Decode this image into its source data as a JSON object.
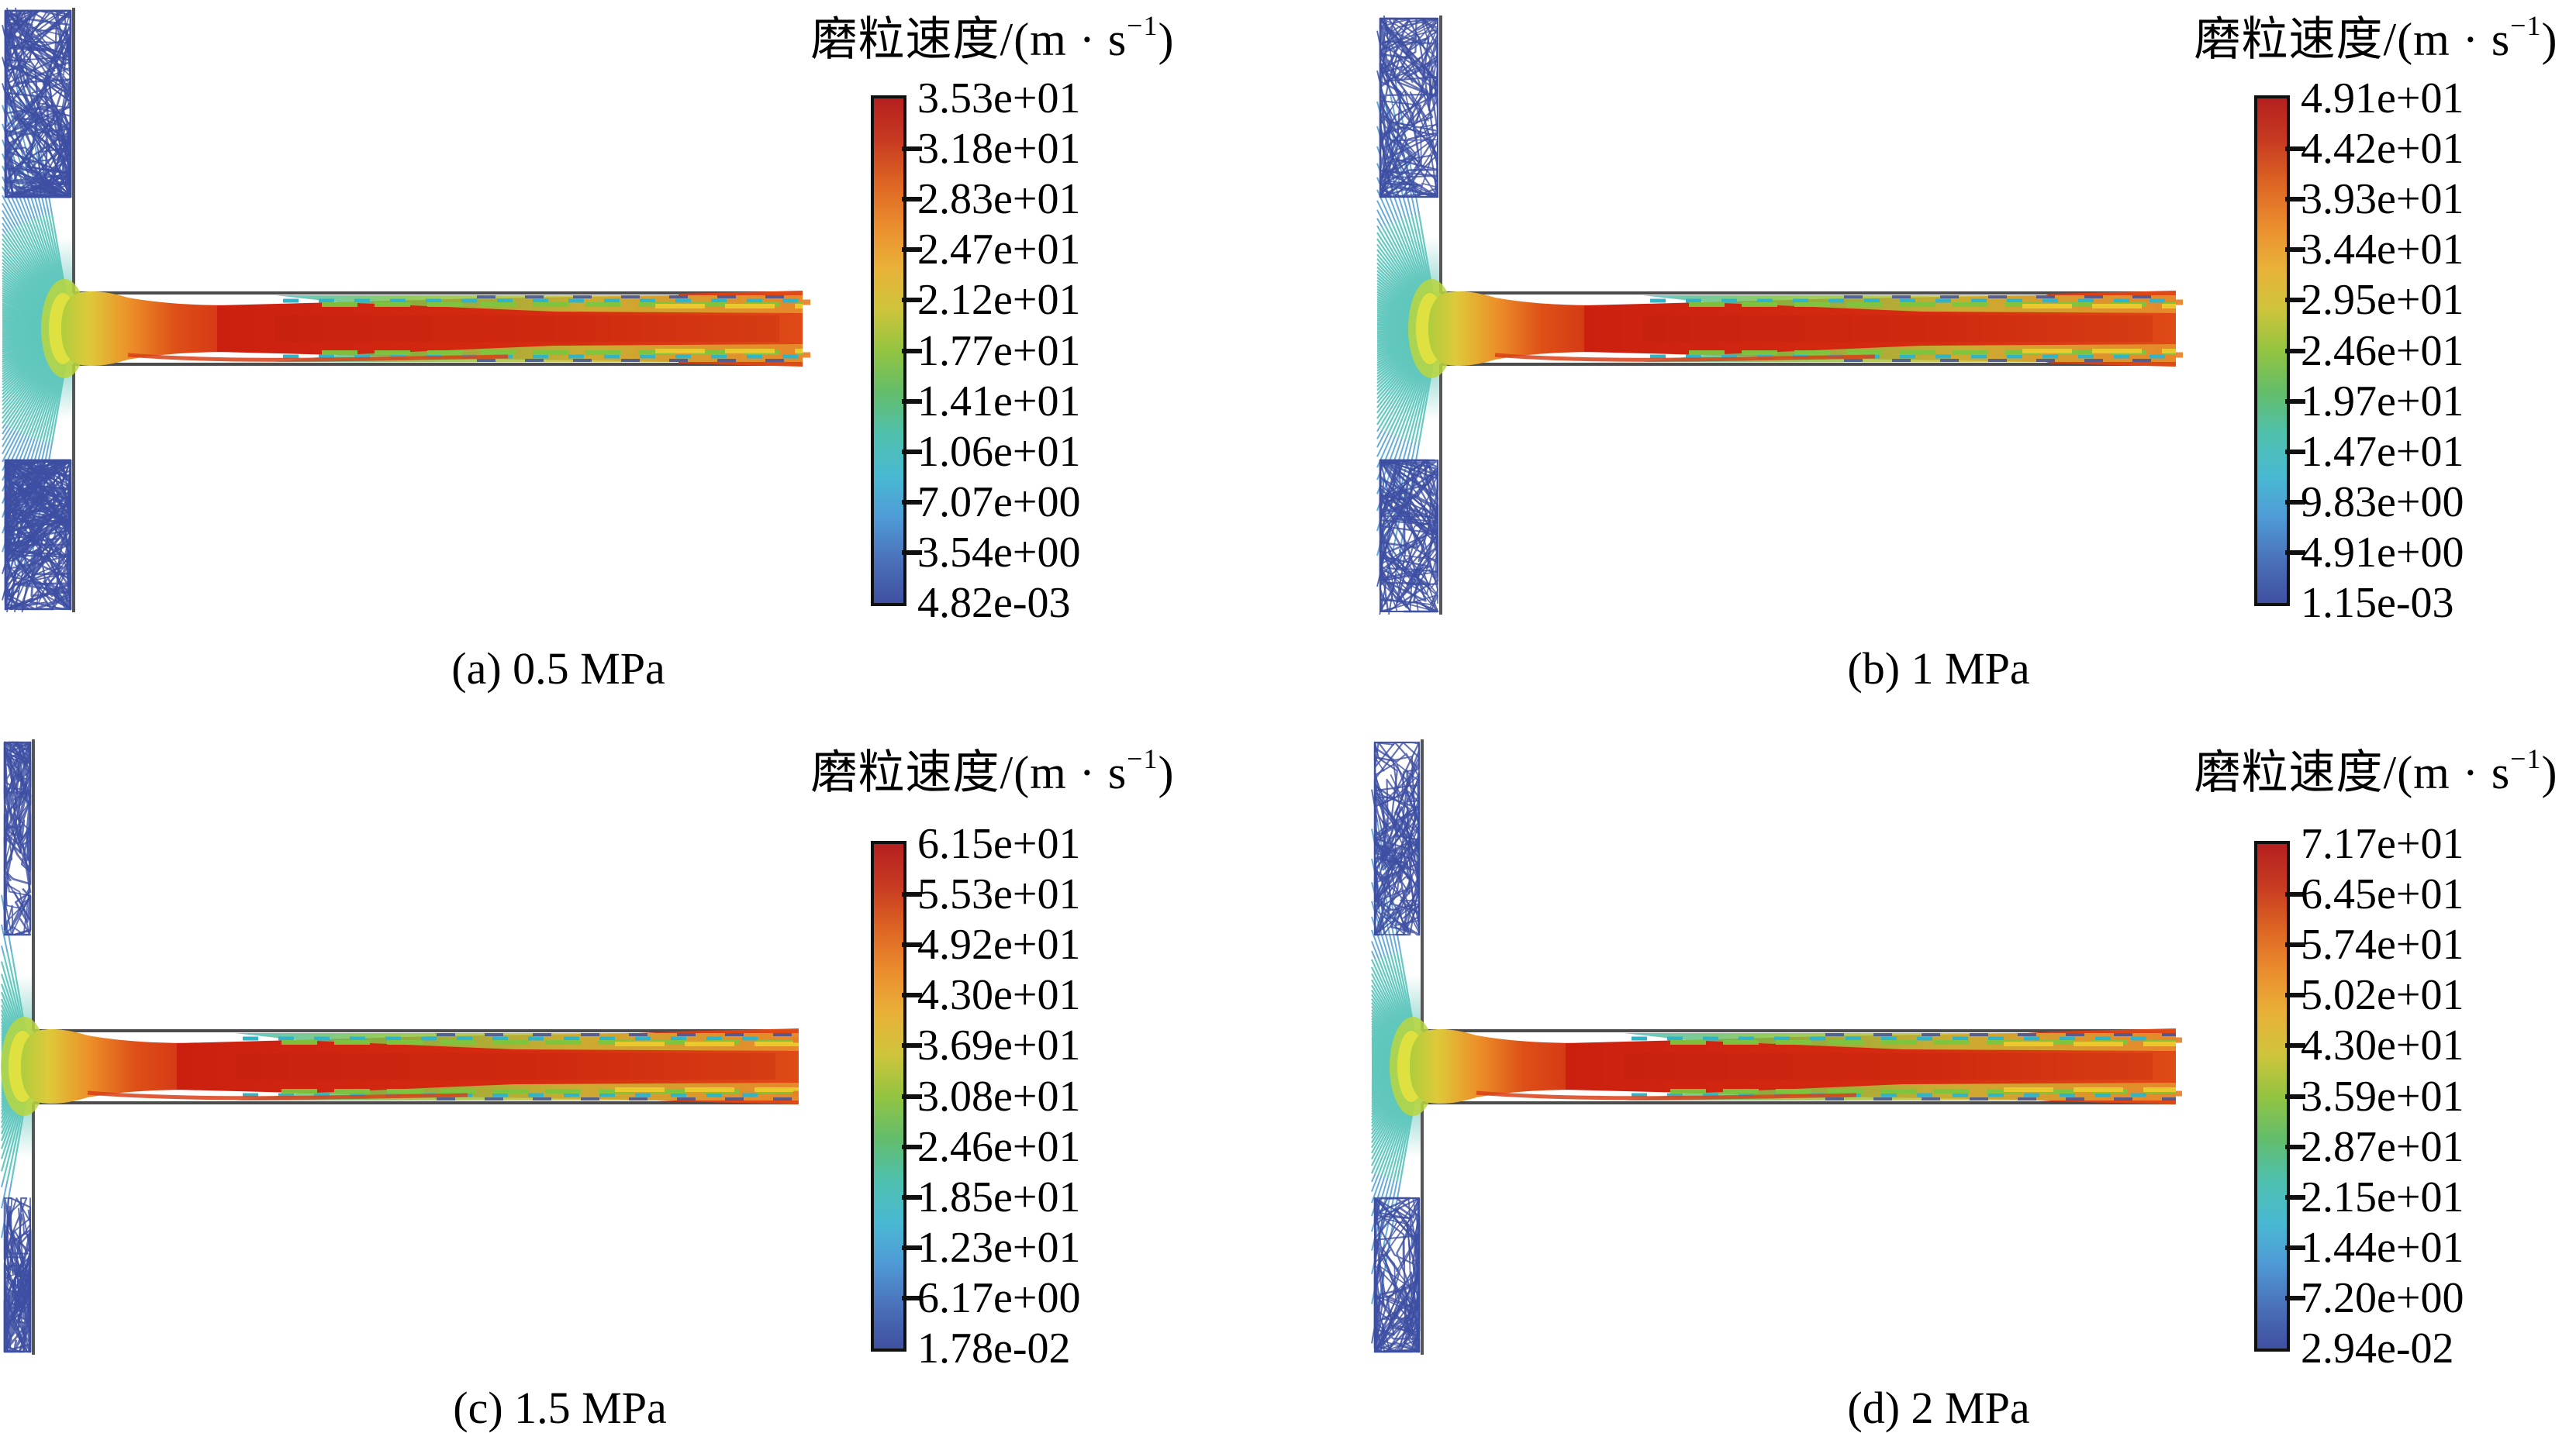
{
  "figure": {
    "description": "CFD streamline plots of abrasive particle velocity in a nozzle jet at four inlet pressures",
    "units": "m/s",
    "colormap_stops": [
      "#b52020",
      "#c73a21",
      "#dd6423",
      "#ea8c2e",
      "#e9b038",
      "#cfc43c",
      "#93c441",
      "#63bd6b",
      "#4fc0ae",
      "#49b9d3",
      "#4f9ad6",
      "#4a70b9",
      "#3f50a0"
    ],
    "panels": [
      {
        "id": "a",
        "caption": "(a) 0.5 MPa",
        "pressure": "0.5 MPa",
        "colorbar": {
          "title_main": "磨粒速度/(m · s",
          "title_sup": "−1",
          "title_close": ")",
          "ticks": [
            "3.53e+01",
            "3.18e+01",
            "2.83e+01",
            "2.47e+01",
            "2.12e+01",
            "1.77e+01",
            "1.41e+01",
            "1.06e+01",
            "7.07e+00",
            "3.54e+00",
            "4.82e-03"
          ]
        }
      },
      {
        "id": "b",
        "caption": "(b) 1 MPa",
        "pressure": "1 MPa",
        "colorbar": {
          "title_main": "磨粒速度/(m · s",
          "title_sup": "−1",
          "title_close": ")",
          "ticks": [
            "4.91e+01",
            "4.42e+01",
            "3.93e+01",
            "3.44e+01",
            "2.95e+01",
            "2.46e+01",
            "1.97e+01",
            "1.47e+01",
            "9.83e+00",
            "4.91e+00",
            "1.15e-03"
          ]
        }
      },
      {
        "id": "c",
        "caption": "(c) 1.5 MPa",
        "pressure": "1.5 MPa",
        "colorbar": {
          "title_main": "磨粒速度/(m · s",
          "title_sup": "−1",
          "title_close": ")",
          "ticks": [
            "6.15e+01",
            "5.53e+01",
            "4.92e+01",
            "4.30e+01",
            "3.69e+01",
            "3.08e+01",
            "2.46e+01",
            "1.85e+01",
            "1.23e+01",
            "6.17e+00",
            "1.78e-02"
          ]
        }
      },
      {
        "id": "d",
        "caption": "(d) 2 MPa",
        "pressure": "2 MPa",
        "colorbar": {
          "title_main": "磨粒速度/(m · s",
          "title_sup": "−1",
          "title_close": ")",
          "ticks": [
            "7.17e+01",
            "6.45e+01",
            "5.74e+01",
            "5.02e+01",
            "4.30e+01",
            "3.59e+01",
            "2.87e+01",
            "2.15e+01",
            "1.44e+01",
            "7.20e+00",
            "2.94e-02"
          ]
        }
      }
    ]
  },
  "chart_data": [
    {
      "type": "heatmap",
      "subtype": "streamline-velocity-field",
      "title": "磨粒速度/(m·s−1)",
      "panel": "(a) 0.5 MPa",
      "colorbar_tick_labels": [
        "3.53e+01",
        "3.18e+01",
        "2.83e+01",
        "2.47e+01",
        "2.12e+01",
        "1.77e+01",
        "1.41e+01",
        "1.06e+01",
        "7.07e+00",
        "3.54e+00",
        "4.82e-03"
      ],
      "colorbar_tick_values": [
        35.3,
        31.8,
        28.3,
        24.7,
        21.2,
        17.7,
        14.1,
        10.6,
        7.07,
        3.54,
        0.00482
      ],
      "range": [
        0.00482,
        35.3
      ],
      "legend_position": "right",
      "colormap": "rainbow blue(min)-to-red(max)",
      "annotations": []
    },
    {
      "type": "heatmap",
      "subtype": "streamline-velocity-field",
      "title": "磨粒速度/(m·s−1)",
      "panel": "(b) 1 MPa",
      "colorbar_tick_labels": [
        "4.91e+01",
        "4.42e+01",
        "3.93e+01",
        "3.44e+01",
        "2.95e+01",
        "2.46e+01",
        "1.97e+01",
        "1.47e+01",
        "9.83e+00",
        "4.91e+00",
        "1.15e-03"
      ],
      "colorbar_tick_values": [
        49.1,
        44.2,
        39.3,
        34.4,
        29.5,
        24.6,
        19.7,
        14.7,
        9.83,
        4.91,
        0.00115
      ],
      "range": [
        0.00115,
        49.1
      ],
      "legend_position": "right",
      "colormap": "rainbow blue(min)-to-red(max)",
      "annotations": []
    },
    {
      "type": "heatmap",
      "subtype": "streamline-velocity-field",
      "title": "磨粒速度/(m·s−1)",
      "panel": "(c) 1.5 MPa",
      "colorbar_tick_labels": [
        "6.15e+01",
        "5.53e+01",
        "4.92e+01",
        "4.30e+01",
        "3.69e+01",
        "3.08e+01",
        "2.46e+01",
        "1.85e+01",
        "1.23e+01",
        "6.17e+00",
        "1.78e-02"
      ],
      "colorbar_tick_values": [
        61.5,
        55.3,
        49.2,
        43.0,
        36.9,
        30.8,
        24.6,
        18.5,
        12.3,
        6.17,
        0.0178
      ],
      "range": [
        0.0178,
        61.5
      ],
      "legend_position": "right",
      "colormap": "rainbow blue(min)-to-red(max)",
      "annotations": []
    },
    {
      "type": "heatmap",
      "subtype": "streamline-velocity-field",
      "title": "磨粒速度/(m·s−1)",
      "panel": "(d) 2 MPa",
      "colorbar_tick_labels": [
        "7.17e+01",
        "6.45e+01",
        "5.74e+01",
        "5.02e+01",
        "4.30e+01",
        "3.59e+01",
        "2.87e+01",
        "2.15e+01",
        "1.44e+01",
        "7.20e+00",
        "2.94e-02"
      ],
      "colorbar_tick_values": [
        71.7,
        64.5,
        57.4,
        50.2,
        43.0,
        35.9,
        28.7,
        21.5,
        14.4,
        7.2,
        0.0294
      ],
      "range": [
        0.0294,
        71.7
      ],
      "legend_position": "right",
      "colormap": "rainbow blue(min)-to-red(max)",
      "annotations": []
    }
  ]
}
